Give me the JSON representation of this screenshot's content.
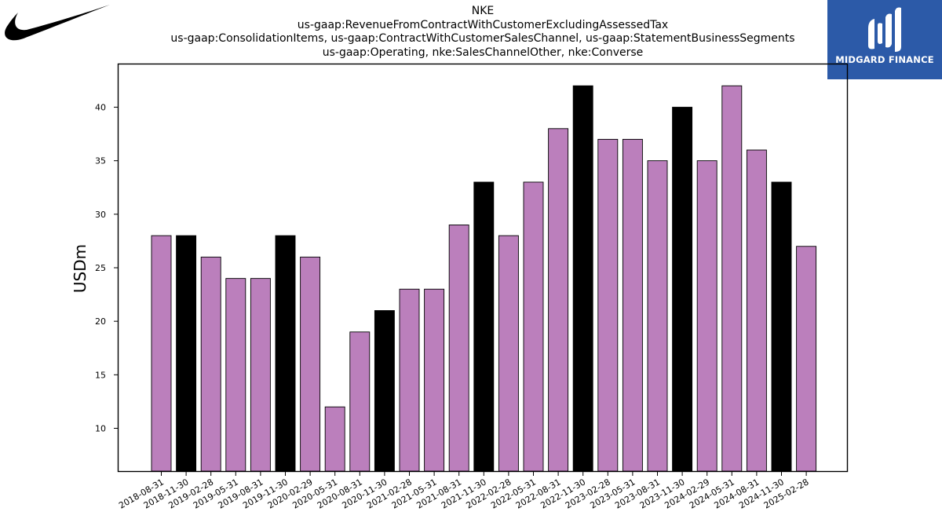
{
  "brand": {
    "logo_icon": "swoosh-logo-icon"
  },
  "partner": {
    "name": "MIDGARD FINANCE",
    "logo_icon": "midgard-monogram-icon",
    "background": "#2c5aa8"
  },
  "chart_data": {
    "type": "bar",
    "title_lines": [
      "NKE",
      "us-gaap:RevenueFromContractWithCustomerExcludingAssessedTax",
      "us-gaap:ConsolidationItems, us-gaap:ContractWithCustomerSalesChannel, us-gaap:StatementBusinessSegments",
      "us-gaap:Operating, nke:SalesChannelOther, nke:Converse"
    ],
    "xlabel": "",
    "ylabel": "USDm",
    "ylim": [
      6,
      44
    ],
    "yticks": [
      10,
      15,
      20,
      25,
      30,
      35,
      40
    ],
    "grid": false,
    "legend": "none",
    "colors": {
      "default": "#bb7fbc",
      "highlight": "#000000",
      "edge": "#000000"
    },
    "categories": [
      "2018-08-31",
      "2018-11-30",
      "2019-02-28",
      "2019-05-31",
      "2019-08-31",
      "2019-11-30",
      "2020-02-29",
      "2020-05-31",
      "2020-08-31",
      "2020-11-30",
      "2021-02-28",
      "2021-05-31",
      "2021-08-31",
      "2021-11-30",
      "2022-02-28",
      "2022-05-31",
      "2022-08-31",
      "2022-11-30",
      "2023-02-28",
      "2023-05-31",
      "2023-08-31",
      "2023-11-30",
      "2024-02-29",
      "2024-05-31",
      "2024-08-31",
      "2024-11-30",
      "2025-02-28"
    ],
    "values": [
      28,
      28,
      26,
      24,
      24,
      28,
      26,
      12,
      19,
      21,
      23,
      23,
      29,
      33,
      28,
      33,
      38,
      42,
      37,
      37,
      35,
      40,
      35,
      42,
      36,
      33,
      27
    ],
    "highlighted": [
      false,
      true,
      false,
      false,
      false,
      true,
      false,
      false,
      false,
      true,
      false,
      false,
      false,
      true,
      false,
      false,
      false,
      true,
      false,
      false,
      false,
      true,
      false,
      false,
      false,
      true,
      false
    ]
  }
}
